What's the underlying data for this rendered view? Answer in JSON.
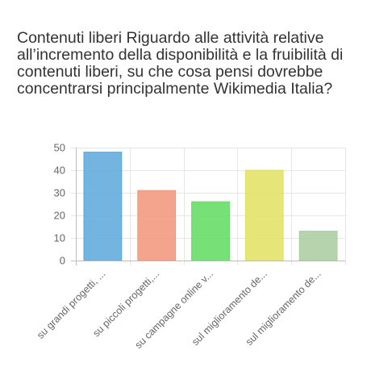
{
  "chart_data": {
    "type": "bar",
    "title": "Contenuti liberi Riguardo alle attività relative all’incremento della disponibilità e la fruibilità di contenuti liberi, su che cosa pensi dovrebbe concentrarsi principalmente Wikimedia Italia?",
    "categories": [
      "su grandi progetti, ...",
      "su piccoli progetti,...",
      "su campagne online v...",
      "sul miglioramento de...",
      "sul miglioramento de..."
    ],
    "values": [
      48,
      31,
      26,
      40,
      13
    ],
    "ylim": [
      0,
      50
    ],
    "yticks": [
      0,
      10,
      20,
      30,
      40,
      50
    ],
    "xlabel": "",
    "ylabel": "",
    "grid": true,
    "legend": "none",
    "colors": [
      "#5aa7dc",
      "#f29478",
      "#5fdc5f",
      "#e2e05f",
      "#a8cda0"
    ]
  }
}
